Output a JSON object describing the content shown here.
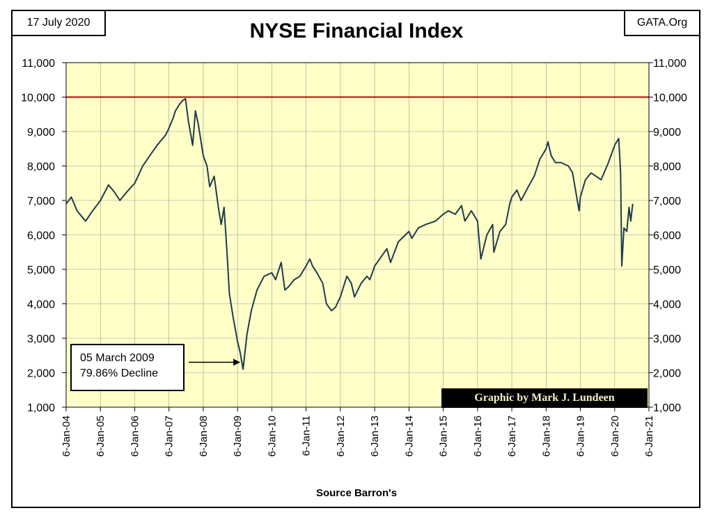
{
  "header": {
    "date": "17 July 2020",
    "site": "GATA.Org"
  },
  "credit": "Graphic by Mark J. Lundeen",
  "colors": {
    "plot_bg": "#ffffc8",
    "line": "#1f3a4d",
    "reference_line": "#c00000",
    "grid": "#999999"
  },
  "chart_data": {
    "type": "line",
    "title": "NYSE Financial Index",
    "xlabel": "Source Barron's",
    "ylabel": "",
    "ylim": [
      1000,
      11000
    ],
    "y_ticks": [
      "1,000",
      "2,000",
      "3,000",
      "4,000",
      "5,000",
      "6,000",
      "7,000",
      "8,000",
      "9,000",
      "10,000",
      "11,000"
    ],
    "x_ticks": [
      "6-Jan-04",
      "6-Jan-05",
      "6-Jan-06",
      "6-Jan-07",
      "6-Jan-08",
      "6-Jan-09",
      "6-Jan-10",
      "6-Jan-11",
      "6-Jan-12",
      "6-Jan-13",
      "6-Jan-14",
      "6-Jan-15",
      "6-Jan-16",
      "6-Jan-17",
      "6-Jan-18",
      "6-Jan-19",
      "6-Jan-20",
      "6-Jan-21"
    ],
    "xlim": [
      "2004-01-06",
      "2021-01-06"
    ],
    "grid": true,
    "y_axis_both_sides": true,
    "reference_line": {
      "y": 10000
    },
    "series": [
      {
        "x": [
          "2004-01-06",
          "2004-03-01",
          "2004-05-01",
          "2004-08-01",
          "2004-10-01",
          "2005-01-06",
          "2005-04-01",
          "2005-06-01",
          "2005-08-01",
          "2005-10-15",
          "2006-01-06",
          "2006-04-01",
          "2006-06-15",
          "2006-09-01",
          "2006-12-01",
          "2007-01-06",
          "2007-02-20",
          "2007-03-15",
          "2007-05-01",
          "2007-06-01",
          "2007-07-01",
          "2007-08-01",
          "2007-09-15",
          "2007-10-15",
          "2007-11-15",
          "2008-01-06",
          "2008-02-15",
          "2008-03-15",
          "2008-05-01",
          "2008-06-15",
          "2008-07-15",
          "2008-08-15",
          "2008-09-15",
          "2008-10-10",
          "2008-11-20",
          "2009-01-06",
          "2009-02-01",
          "2009-03-05",
          "2009-04-15",
          "2009-06-01",
          "2009-08-01",
          "2009-10-15",
          "2010-01-06",
          "2010-02-15",
          "2010-04-15",
          "2010-05-25",
          "2010-07-05",
          "2010-09-01",
          "2010-11-01",
          "2011-01-06",
          "2011-02-15",
          "2011-03-15",
          "2011-05-01",
          "2011-07-01",
          "2011-08-10",
          "2011-10-03",
          "2011-11-15",
          "2012-01-06",
          "2012-03-15",
          "2012-05-01",
          "2012-06-04",
          "2012-08-15",
          "2012-10-15",
          "2012-11-15",
          "2013-01-06",
          "2013-05-15",
          "2013-06-24",
          "2013-09-15",
          "2014-01-06",
          "2014-02-05",
          "2014-04-15",
          "2014-07-01",
          "2014-10-15",
          "2015-01-06",
          "2015-03-01",
          "2015-05-15",
          "2015-07-20",
          "2015-08-25",
          "2015-11-01",
          "2016-01-06",
          "2016-02-11",
          "2016-04-15",
          "2016-06-15",
          "2016-06-28",
          "2016-09-01",
          "2016-11-01",
          "2016-12-15",
          "2017-01-06",
          "2017-03-01",
          "2017-04-15",
          "2017-07-01",
          "2017-09-01",
          "2017-11-01",
          "2018-01-06",
          "2018-01-26",
          "2018-03-01",
          "2018-04-15",
          "2018-06-15",
          "2018-09-01",
          "2018-10-15",
          "2018-12-24",
          "2019-01-06",
          "2019-03-01",
          "2019-05-01",
          "2019-08-15",
          "2019-11-01",
          "2020-01-06",
          "2020-02-19",
          "2020-03-10",
          "2020-03-23",
          "2020-04-15",
          "2020-05-15",
          "2020-06-08",
          "2020-06-26",
          "2020-07-17"
        ],
        "values": [
          6900,
          7100,
          6700,
          6400,
          6650,
          7000,
          7450,
          7250,
          7000,
          7250,
          7500,
          8000,
          8300,
          8600,
          8900,
          9100,
          9400,
          9600,
          9800,
          9900,
          9950,
          9300,
          8600,
          9600,
          9200,
          8300,
          8000,
          7400,
          7700,
          6800,
          6300,
          6800,
          5500,
          4300,
          3600,
          2900,
          2600,
          2100,
          3100,
          3800,
          4400,
          4800,
          4900,
          4700,
          5200,
          4400,
          4500,
          4700,
          4800,
          5100,
          5300,
          5100,
          4900,
          4600,
          4000,
          3800,
          3900,
          4200,
          4800,
          4600,
          4200,
          4600,
          4800,
          4700,
          5100,
          5600,
          5200,
          5800,
          6100,
          5900,
          6200,
          6300,
          6400,
          6600,
          6700,
          6600,
          6850,
          6400,
          6700,
          6400,
          5300,
          6000,
          6300,
          5500,
          6100,
          6300,
          6900,
          7100,
          7300,
          7000,
          7400,
          7700,
          8200,
          8500,
          8700,
          8300,
          8100,
          8100,
          8000,
          7800,
          6700,
          7100,
          7600,
          7800,
          7600,
          8100,
          8600,
          8800,
          7800,
          5100,
          6200,
          6100,
          6800,
          6400,
          6900
        ]
      }
    ],
    "annotation": {
      "lines": [
        "05 March 2009",
        "79.86%  Decline"
      ],
      "point": {
        "x": "2009-03-05",
        "y": 2100
      }
    }
  },
  "footer": {
    "source": "Source Barron's"
  }
}
